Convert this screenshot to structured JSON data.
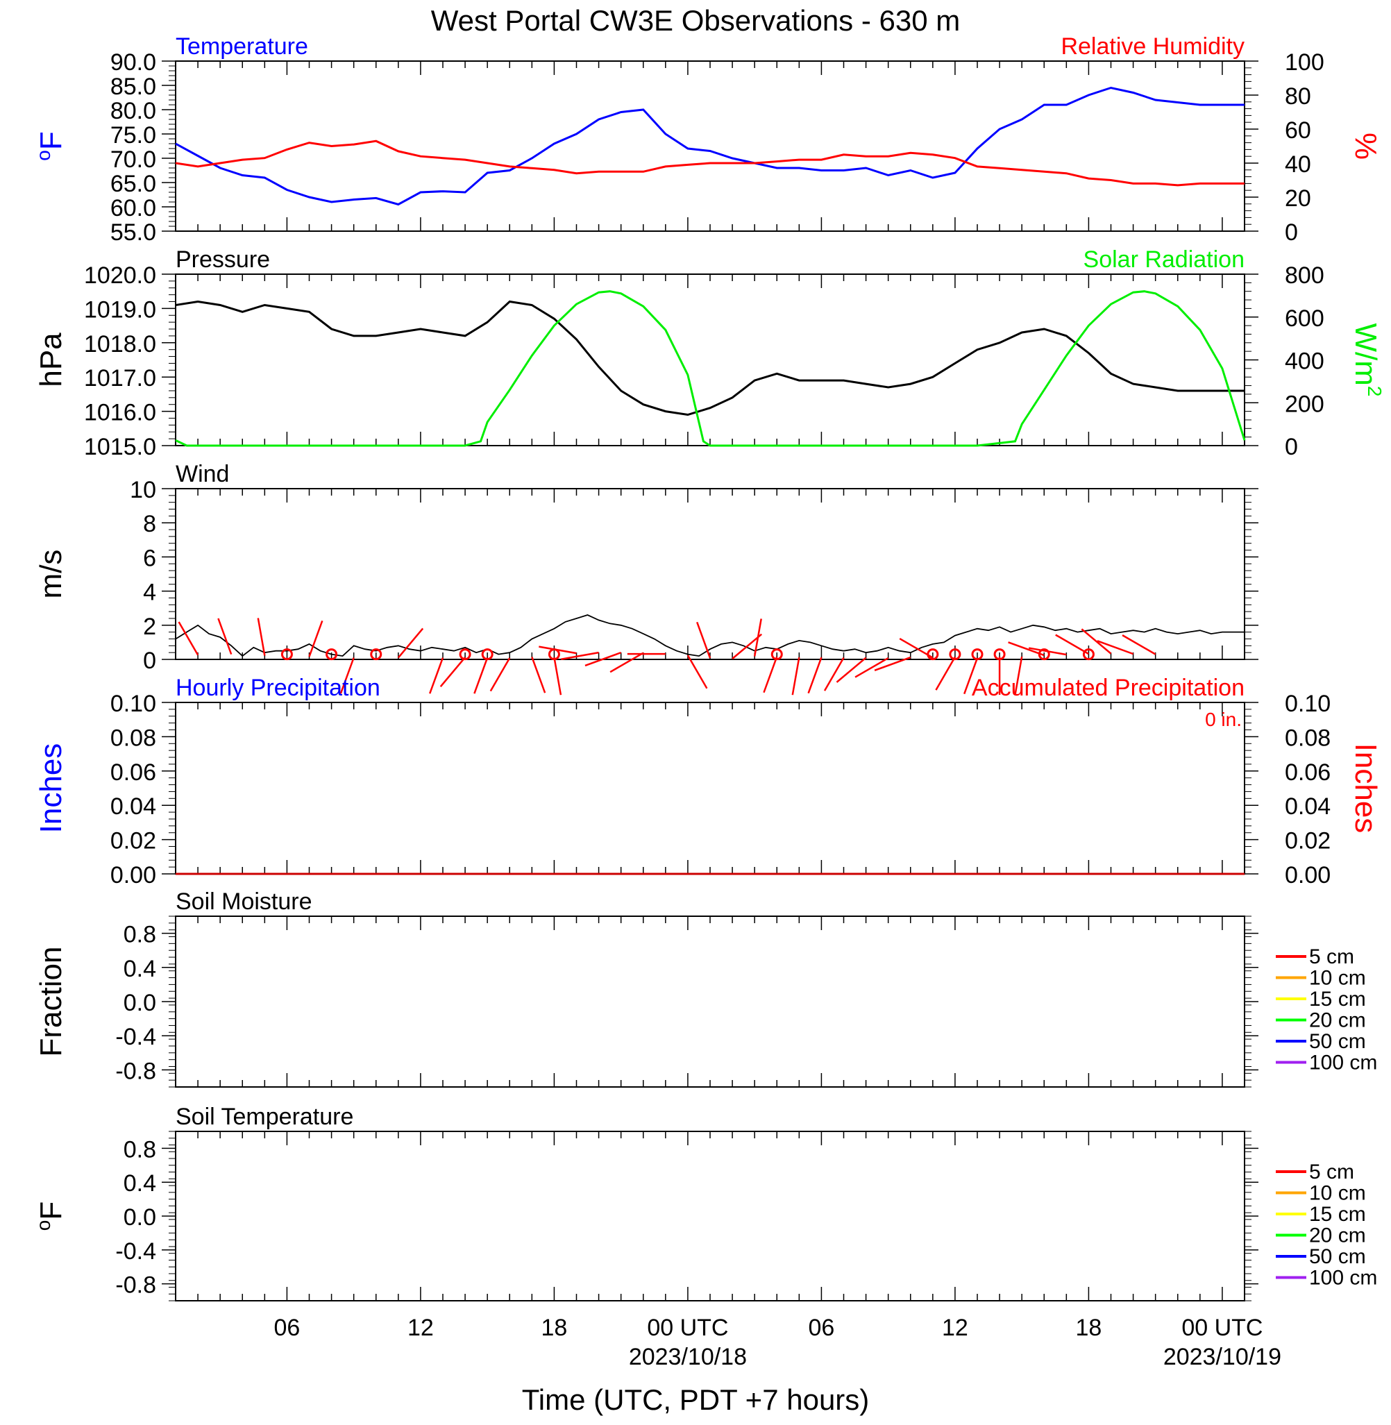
{
  "title": "West Portal CW3E Observations - 630 m",
  "x_axis": {
    "label": "Time (UTC, PDT +7 hours)",
    "range_hours": [
      0,
      48
    ],
    "ticks": [
      {
        "hour": 5,
        "label": "06"
      },
      {
        "hour": 11,
        "label": "12"
      },
      {
        "hour": 17,
        "label": "18"
      },
      {
        "hour": 23,
        "label": "00 UTC",
        "sublabel": "2023/10/18"
      },
      {
        "hour": 29,
        "label": "06"
      },
      {
        "hour": 35,
        "label": "12"
      },
      {
        "hour": 41,
        "label": "18"
      },
      {
        "hour": 47,
        "label": "00 UTC",
        "sublabel": "2023/10/19"
      }
    ]
  },
  "chart_data": [
    {
      "type": "line",
      "panel": "temperature-humidity",
      "left_title": "Temperature",
      "right_title": "Relative Humidity",
      "ylabel": "°F",
      "ylabel_base": "o",
      "ylabel_rest": "F",
      "y2label": "%",
      "ylim": [
        55,
        90
      ],
      "yticks": [
        "55.0",
        "60.0",
        "65.0",
        "70.0",
        "75.0",
        "80.0",
        "85.0",
        "90.0"
      ],
      "y2lim": [
        0,
        100
      ],
      "y2ticks": [
        "0",
        "20",
        "40",
        "60",
        "80",
        "100"
      ],
      "series": [
        {
          "name": "Temperature",
          "color": "#0000ff",
          "axis": "left",
          "x": [
            0,
            1,
            2,
            3,
            4,
            5,
            6,
            7,
            8,
            9,
            10,
            11,
            12,
            13,
            14,
            15,
            16,
            17,
            18,
            19,
            20,
            21,
            22,
            23,
            24,
            25,
            26,
            27,
            28,
            29,
            30,
            31,
            32,
            33,
            34,
            35,
            36,
            37,
            38,
            39,
            40,
            41,
            42,
            43,
            44,
            45,
            46,
            47,
            48
          ],
          "y": [
            73,
            70.5,
            68,
            66.5,
            66,
            63.5,
            62,
            61,
            61.5,
            61.8,
            60.5,
            63,
            63.2,
            63,
            67,
            67.5,
            70,
            73,
            75,
            78,
            79.5,
            80,
            75,
            72,
            71.5,
            70,
            69,
            68,
            68,
            67.5,
            67.5,
            68,
            66.5,
            67.5,
            66,
            67,
            72,
            76,
            78,
            81,
            81,
            83,
            84.5,
            83.5,
            82,
            81.5,
            81,
            81,
            81
          ]
        },
        {
          "name": "Relative Humidity",
          "color": "#ff0000",
          "axis": "right",
          "x": [
            0,
            1,
            2,
            3,
            4,
            5,
            6,
            7,
            8,
            9,
            10,
            11,
            12,
            13,
            14,
            15,
            16,
            17,
            18,
            19,
            20,
            21,
            22,
            23,
            24,
            25,
            26,
            27,
            28,
            29,
            30,
            31,
            32,
            33,
            34,
            35,
            36,
            37,
            38,
            39,
            40,
            41,
            42,
            43,
            44,
            45,
            46,
            47,
            48
          ],
          "y": [
            40,
            38,
            40,
            42,
            43,
            48,
            52,
            50,
            51,
            53,
            47,
            44,
            43,
            42,
            40,
            38,
            37,
            36,
            34,
            35,
            35,
            35,
            38,
            39,
            40,
            40,
            40,
            41,
            42,
            42,
            45,
            44,
            44,
            46,
            45,
            43,
            38,
            37,
            36,
            35,
            34,
            31,
            30,
            28,
            28,
            27,
            28,
            28,
            28
          ]
        }
      ]
    },
    {
      "type": "line",
      "panel": "pressure-solar",
      "left_title": "Pressure",
      "right_title": "Solar Radiation",
      "ylabel": "hPa",
      "y2label": "W/m2",
      "y2label_base": "W/m",
      "y2label_sup": "2",
      "ylim": [
        1015,
        1020
      ],
      "yticks": [
        "1015.0",
        "1016.0",
        "1017.0",
        "1018.0",
        "1019.0",
        "1020.0"
      ],
      "y2lim": [
        0,
        800
      ],
      "y2ticks": [
        "0",
        "200",
        "400",
        "600",
        "800"
      ],
      "series": [
        {
          "name": "Pressure",
          "color": "#000000",
          "axis": "left",
          "x": [
            0,
            1,
            2,
            3,
            4,
            5,
            6,
            7,
            8,
            9,
            10,
            11,
            12,
            13,
            14,
            15,
            16,
            17,
            18,
            19,
            20,
            21,
            22,
            23,
            24,
            25,
            26,
            27,
            28,
            29,
            30,
            31,
            32,
            33,
            34,
            35,
            36,
            37,
            38,
            39,
            40,
            41,
            42,
            43,
            44,
            45,
            46,
            47,
            48
          ],
          "y": [
            1019.1,
            1019.2,
            1019.1,
            1018.9,
            1019.1,
            1019,
            1018.9,
            1018.4,
            1018.2,
            1018.2,
            1018.3,
            1018.4,
            1018.3,
            1018.2,
            1018.6,
            1019.2,
            1019.1,
            1018.7,
            1018.1,
            1017.3,
            1016.6,
            1016.2,
            1016,
            1015.9,
            1016.1,
            1016.4,
            1016.9,
            1017.1,
            1016.9,
            1016.9,
            1016.9,
            1016.8,
            1016.7,
            1016.8,
            1017,
            1017.4,
            1017.8,
            1018,
            1018.3,
            1018.4,
            1018.2,
            1017.7,
            1017.1,
            1016.8,
            1016.7,
            1016.6,
            1016.6,
            1016.6,
            1016.6
          ]
        },
        {
          "name": "Solar Radiation",
          "color": "#00ee00",
          "axis": "right",
          "x": [
            0,
            0.5,
            1,
            13,
            13.7,
            14,
            15,
            16,
            17,
            18,
            19,
            19.5,
            20,
            21,
            22,
            23,
            23.7,
            24,
            36,
            37.7,
            38,
            39,
            40,
            41,
            42,
            43,
            43.5,
            44,
            45,
            46,
            47,
            48
          ],
          "y": [
            25,
            0,
            0,
            0,
            20,
            110,
            260,
            420,
            560,
            660,
            715,
            720,
            710,
            650,
            540,
            330,
            20,
            0,
            0,
            20,
            100,
            260,
            420,
            560,
            660,
            715,
            720,
            710,
            650,
            540,
            360,
            25
          ]
        }
      ]
    },
    {
      "type": "line",
      "panel": "wind",
      "left_title": "Wind",
      "ylabel": "m/s",
      "ylim": [
        0,
        10
      ],
      "yticks": [
        "0",
        "2",
        "4",
        "6",
        "8",
        "10"
      ],
      "series": [
        {
          "name": "Wind",
          "color": "#000000",
          "axis": "left",
          "x": [
            0,
            0.5,
            1,
            1.5,
            2,
            2.5,
            3,
            3.5,
            4,
            4.5,
            5,
            5.5,
            6,
            6.5,
            7,
            7.5,
            8,
            8.5,
            9,
            9.5,
            10,
            10.5,
            11,
            11.5,
            12,
            12.5,
            13,
            13.5,
            14,
            14.5,
            15,
            15.5,
            16,
            16.5,
            17,
            17.5,
            18,
            18.5,
            19,
            19.5,
            20,
            20.5,
            21,
            21.5,
            22,
            22.5,
            23,
            23.5,
            24,
            24.5,
            25,
            25.5,
            26,
            26.5,
            27,
            27.5,
            28,
            28.5,
            29,
            29.5,
            30,
            30.5,
            31,
            31.5,
            32,
            32.5,
            33,
            33.5,
            34,
            34.5,
            35,
            35.5,
            36,
            36.5,
            37,
            37.5,
            38,
            38.5,
            39,
            39.5,
            40,
            40.5,
            41,
            41.5,
            42,
            42.5,
            43,
            43.5,
            44,
            44.5,
            45,
            45.5,
            46,
            46.5,
            47,
            47.5,
            48
          ],
          "y": [
            1.2,
            1.6,
            2,
            1.5,
            1.3,
            0.8,
            0.2,
            0.7,
            0.4,
            0.5,
            0.5,
            0.6,
            0.9,
            0.5,
            0.3,
            0.2,
            0.8,
            0.6,
            0.5,
            0.7,
            0.8,
            0.6,
            0.5,
            0.7,
            0.6,
            0.5,
            0.7,
            0.4,
            0.6,
            0.3,
            0.4,
            0.7,
            1.2,
            1.5,
            1.8,
            2.2,
            2.4,
            2.6,
            2.3,
            2.1,
            2.0,
            1.8,
            1.5,
            1.2,
            0.8,
            0.5,
            0.3,
            0.2,
            0.6,
            0.9,
            1.0,
            0.8,
            0.5,
            0.7,
            0.6,
            0.9,
            1.1,
            1.0,
            0.8,
            0.6,
            0.5,
            0.6,
            0.4,
            0.5,
            0.7,
            0.5,
            0.4,
            0.7,
            0.9,
            1.0,
            1.4,
            1.6,
            1.8,
            1.7,
            1.9,
            1.6,
            1.8,
            2.0,
            1.9,
            1.7,
            1.8,
            1.6,
            1.7,
            1.8,
            1.5,
            1.6,
            1.7,
            1.6,
            1.8,
            1.6,
            1.5,
            1.6,
            1.7,
            1.5,
            1.6,
            1.6,
            1.6
          ]
        },
        {
          "name": "Wind Direction",
          "color": "#ff0000",
          "axis": "left",
          "hours": [
            1,
            2.5,
            4,
            6,
            8,
            10,
            12,
            13,
            14,
            15,
            16,
            17,
            18,
            19,
            20,
            21,
            22,
            23,
            24,
            25,
            26,
            27,
            28,
            29,
            30,
            31,
            32,
            33,
            34,
            35,
            36,
            37,
            38,
            39,
            40,
            41,
            42,
            43,
            44
          ],
          "speeds": [
            1.3,
            1.5,
            1.1,
            0.8,
            0.5,
            0.5,
            0.5,
            0.6,
            0.5,
            0.4,
            0.7,
            0.6,
            1.8,
            2.0,
            2.0,
            1.9,
            1.6,
            1.2,
            0.4,
            0.2,
            0.9,
            0.8,
            0.6,
            0.6,
            0.5,
            0.5,
            0.4,
            0.6,
            0.5,
            0.7,
            0.4,
            0.8,
            0.8,
            1.2,
            1.4,
            1.6,
            1.7,
            1.6,
            1.5
          ],
          "directions_deg": [
            330,
            340,
            350,
            20,
            200,
            40,
            200,
            220,
            200,
            210,
            160,
            170,
            280,
            260,
            250,
            240,
            270,
            150,
            340,
            50,
            10,
            200,
            190,
            200,
            210,
            230,
            240,
            250,
            300,
            210,
            200,
            180,
            190,
            290,
            280,
            300,
            310,
            290,
            300
          ]
        }
      ]
    },
    {
      "type": "line",
      "panel": "precipitation",
      "left_title": "Hourly Precipitation",
      "right_title": "Accumulated Precipitation",
      "annotation": "0 in.",
      "ylabel": "Inches",
      "y2label": "Inches",
      "ylim": [
        0,
        0.1
      ],
      "yticks": [
        "0.00",
        "0.02",
        "0.04",
        "0.06",
        "0.08",
        "0.10"
      ],
      "y2lim": [
        0,
        0.1
      ],
      "y2ticks": [
        "0.00",
        "0.02",
        "0.04",
        "0.06",
        "0.08",
        "0.10"
      ],
      "series": [
        {
          "name": "Hourly Precipitation",
          "color": "#0000ff",
          "axis": "left",
          "x": [
            0,
            48
          ],
          "y": [
            0,
            0
          ]
        },
        {
          "name": "Accumulated Precipitation",
          "color": "#cc0000",
          "axis": "right",
          "x": [
            0,
            48
          ],
          "y": [
            0,
            0
          ]
        }
      ]
    },
    {
      "type": "line",
      "panel": "soil-moisture",
      "left_title": "Soil Moisture",
      "ylabel": "Fraction",
      "ylim": [
        -1,
        1
      ],
      "yticks": [
        "-0.8",
        "-0.4",
        "0.0",
        "0.4",
        "0.8"
      ],
      "legend": [
        {
          "label": "5 cm",
          "color": "#ff0000"
        },
        {
          "label": "10 cm",
          "color": "#ffa500"
        },
        {
          "label": "15 cm",
          "color": "#ffff00"
        },
        {
          "label": "20 cm",
          "color": "#00ff00"
        },
        {
          "label": "50 cm",
          "color": "#0000ff"
        },
        {
          "label": "100 cm",
          "color": "#a020f0"
        }
      ],
      "series": []
    },
    {
      "type": "line",
      "panel": "soil-temperature",
      "left_title": "Soil Temperature",
      "ylabel": "°F",
      "ylabel_base": "o",
      "ylabel_rest": "F",
      "ylim": [
        -1,
        1
      ],
      "yticks": [
        "-0.8",
        "-0.4",
        "0.0",
        "0.4",
        "0.8"
      ],
      "legend": [
        {
          "label": "5 cm",
          "color": "#ff0000"
        },
        {
          "label": "10 cm",
          "color": "#ffa500"
        },
        {
          "label": "15 cm",
          "color": "#ffff00"
        },
        {
          "label": "20 cm",
          "color": "#00ff00"
        },
        {
          "label": "50 cm",
          "color": "#0000ff"
        },
        {
          "label": "100 cm",
          "color": "#a020f0"
        }
      ],
      "series": []
    }
  ]
}
